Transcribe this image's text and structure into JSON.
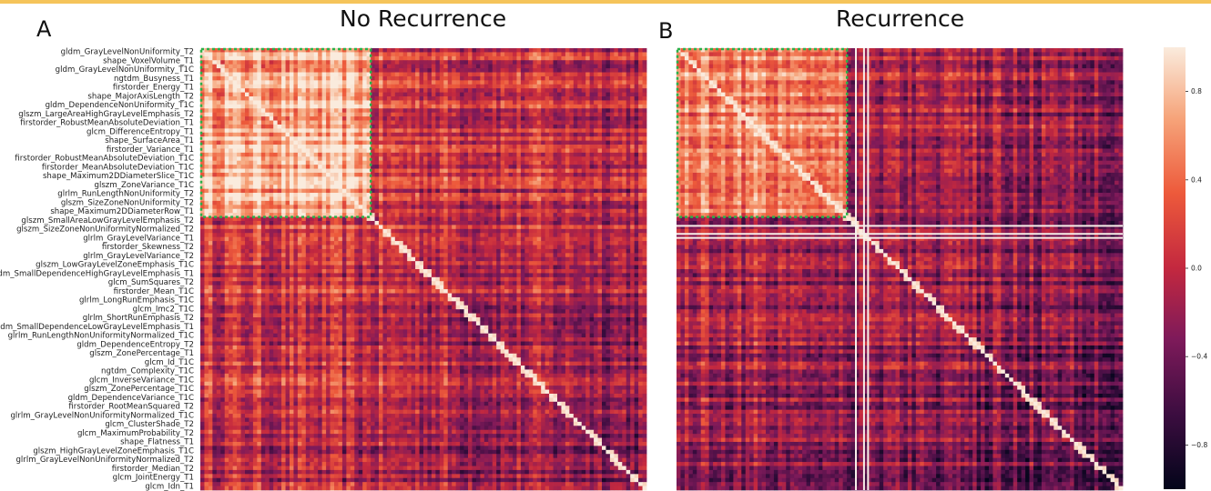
{
  "colors": {
    "top_bar": "#f5c45a",
    "highlight_box": "#2bb04a",
    "colormap": [
      "#03051a",
      "#3c0d40",
      "#7e1a5a",
      "#c3283f",
      "#ed5a3b",
      "#f6a47a",
      "#faebdd"
    ]
  },
  "chart_data": [
    {
      "panel_letter": "A",
      "title": "No Recurrence",
      "type": "heatmap",
      "row_labels": [
        "gldm_GrayLevelNonUniformity_T2",
        "shape_VoxelVolume_T1",
        "gldm_GrayLevelNonUniformity_T1C",
        "ngtdm_Busyness_T1",
        "firstorder_Energy_T1",
        "shape_MajorAxisLength_T2",
        "gldm_DependenceNonUniformity_T1C",
        "glszm_LargeAreaHighGrayLevelEmphasis_T2",
        "firstorder_RobustMeanAbsoluteDeviation_T1",
        "glcm_DifferenceEntropy_T1",
        "shape_SurfaceArea_T1",
        "firstorder_Variance_T1",
        "firstorder_RobustMeanAbsoluteDeviation_T1C",
        "firstorder_MeanAbsoluteDeviation_T1C",
        "shape_Maximum2DDiameterSlice_T1C",
        "glszm_ZoneVariance_T1C",
        "glrlm_RunLengthNonUniformity_T2",
        "glszm_SizeZoneNonUniformity_T2",
        "shape_Maximum2DDiameterRow_T1",
        "glszm_SmallAreaLowGrayLevelEmphasis_T2",
        "glszm_SizeZoneNonUniformityNormalized_T2",
        "glrlm_GrayLevelVariance_T1",
        "firstorder_Skewness_T2",
        "glrlm_GrayLevelVariance_T2",
        "glszm_LowGrayLevelZoneEmphasis_T1C",
        "gldm_SmallDependenceHighGrayLevelEmphasis_T1",
        "glcm_SumSquares_T2",
        "firstorder_Mean_T1C",
        "glrlm_LongRunEmphasis_T1C",
        "glcm_Imc2_T1C",
        "glrlm_ShortRunEmphasis_T2",
        "gldm_SmallDependenceLowGrayLevelEmphasis_T1",
        "glrlm_RunLengthNonUniformityNormalized_T1C",
        "gldm_DependenceEntropy_T2",
        "glszm_ZonePercentage_T1",
        "glcm_Id_T1C",
        "ngtdm_Complexity_T1C",
        "glcm_InverseVariance_T1C",
        "glszm_ZonePercentage_T1C",
        "gldm_DependenceVariance_T1C",
        "firstorder_RootMeanSquared_T2",
        "glrlm_GrayLevelNonUniformityNormalized_T1C",
        "glcm_ClusterShade_T2",
        "glcm_MaximumProbability_T2",
        "shape_Flatness_T1",
        "glszm_HighGrayLevelZoneEmphasis_T1C",
        "glrlm_GrayLevelNonUniformityNormalized_T2",
        "firstorder_Median_T2",
        "glcm_JointEnergy_T1",
        "glcm_Idn_T1"
      ],
      "highlight_block_fraction": 0.38,
      "summary": {
        "highlighted_block_mean_correlation": 0.7,
        "off_block_mean_correlation": 0.25
      }
    },
    {
      "panel_letter": "B",
      "title": "Recurrence",
      "type": "heatmap",
      "highlight_block_fraction": 0.38,
      "summary": {
        "highlighted_block_mean_correlation": 0.55,
        "off_block_mean_correlation": 0.05
      }
    }
  ],
  "colorbar": {
    "min": -1.0,
    "max": 1.0,
    "ticks": [
      {
        "value": 0.8,
        "label": "0.8"
      },
      {
        "value": 0.4,
        "label": "0.4"
      },
      {
        "value": 0.0,
        "label": "0.0"
      },
      {
        "value": -0.4,
        "label": "−0.4"
      },
      {
        "value": -0.8,
        "label": "−0.8"
      }
    ]
  }
}
